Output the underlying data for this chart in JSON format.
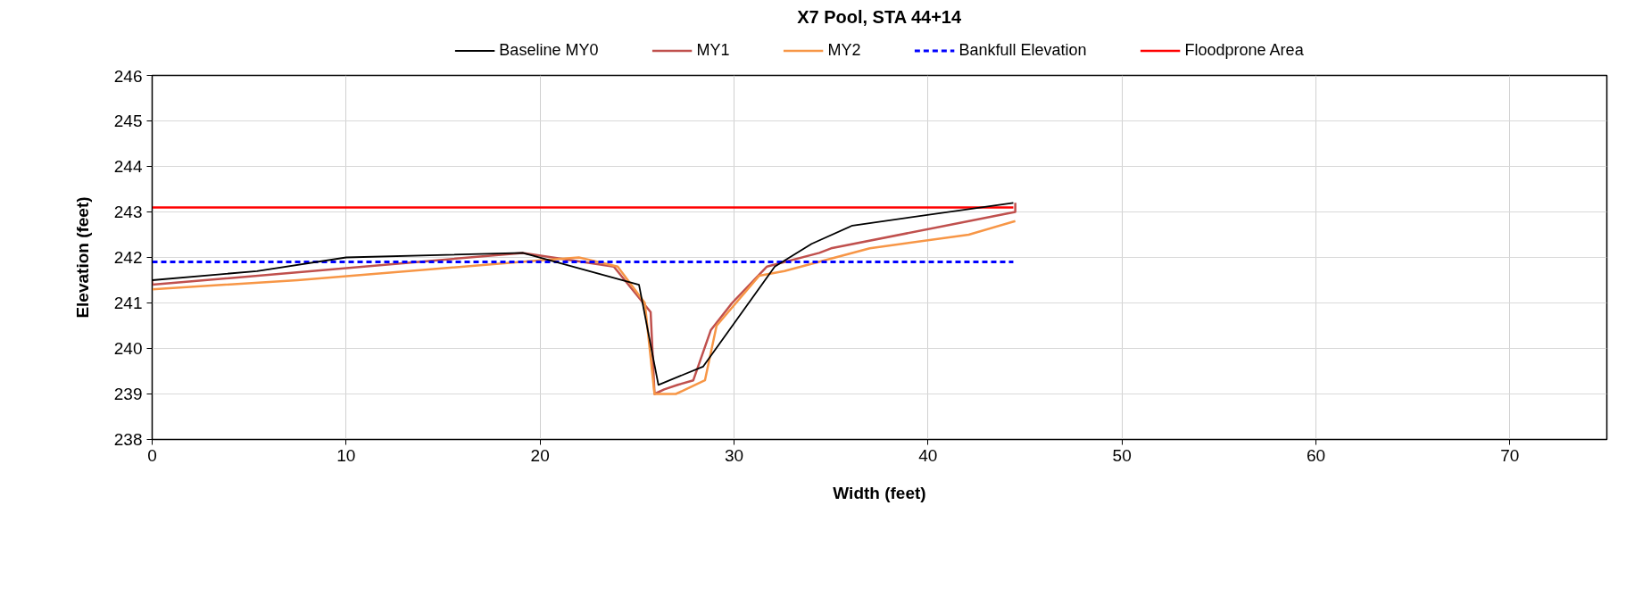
{
  "chart_data": {
    "type": "line",
    "title": "X7 Pool, STA 44+14",
    "xlabel": "Width (feet)",
    "ylabel": "Elevation (feet)",
    "xlim": [
      0,
      75
    ],
    "ylim": [
      238,
      246
    ],
    "xticks": [
      0,
      10,
      20,
      30,
      40,
      50,
      60,
      70
    ],
    "yticks": [
      238,
      239,
      240,
      241,
      242,
      243,
      244,
      245,
      246
    ],
    "grid": true,
    "legend": "top",
    "series": [
      {
        "name": "Baseline MY0",
        "color": "#000000",
        "line_style": "solid",
        "x": [
          0,
          5.4,
          10.0,
          19.1,
          25.1,
          26.1,
          28.4,
          32.1,
          34.0,
          36.1,
          44.4
        ],
        "values": [
          241.5,
          241.7,
          242.0,
          242.1,
          241.4,
          239.2,
          239.6,
          241.8,
          242.3,
          242.7,
          243.2
        ]
      },
      {
        "name": "MY1",
        "color": "#c0504d",
        "line_style": "solid",
        "x": [
          0,
          0,
          19.1,
          23.8,
          25.7,
          25.9,
          26.4,
          27.1,
          27.9,
          28.8,
          29.9,
          31.7,
          34.4,
          35.0,
          44.5,
          44.5
        ],
        "values": [
          241.5,
          241.4,
          242.1,
          241.8,
          240.8,
          239.0,
          239.1,
          239.2,
          239.3,
          240.4,
          241.0,
          241.8,
          242.1,
          242.2,
          243.0,
          243.2
        ]
      },
      {
        "name": "MY2",
        "color": "#f79646",
        "line_style": "solid",
        "x": [
          0,
          7.5,
          19.0,
          22.0,
          24.0,
          25.4,
          25.9,
          27.0,
          28.5,
          29.1,
          31.3,
          32.6,
          37.0,
          42.1,
          44.5
        ],
        "values": [
          241.3,
          241.5,
          241.9,
          242.0,
          241.8,
          241.0,
          239.0,
          239.0,
          239.3,
          240.5,
          241.6,
          241.7,
          242.2,
          242.5,
          242.8
        ]
      },
      {
        "name": "Bankfull Elevation",
        "color": "#0000ff",
        "line_style": "dashed",
        "x": [
          0,
          44.4
        ],
        "values": [
          241.9,
          241.9
        ]
      },
      {
        "name": "Floodprone Area",
        "color": "#ff0000",
        "line_style": "solid",
        "x": [
          0,
          44.4
        ],
        "values": [
          243.1,
          243.1
        ]
      }
    ]
  }
}
